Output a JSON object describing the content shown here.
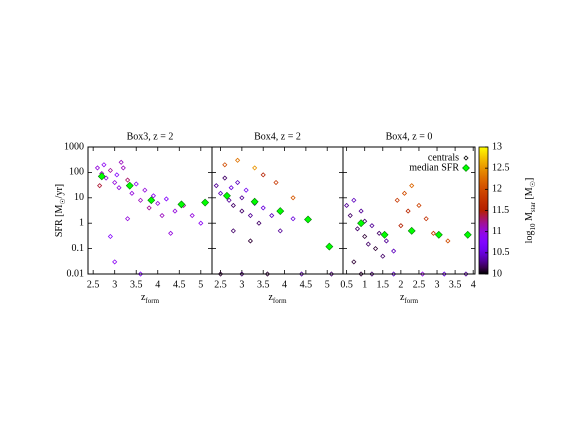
{
  "chart_data": [
    {
      "type": "scatter",
      "title": "Box3, z = 2",
      "ylabel": "SFR [M",
      "ylabel_sub": "☉",
      "ylabel_end": "/yr]",
      "xlabel": "z",
      "xlabel_sub": "form",
      "log_y": true,
      "xlim": [
        2.38,
        5.26
      ],
      "xticks": [
        2.5,
        3,
        3.5,
        4,
        4.5,
        5
      ],
      "ylim": [
        0.01,
        1000
      ],
      "yticks": [
        0.01,
        0.1,
        1,
        10,
        100,
        1000
      ],
      "series": [
        {
          "x": [
            2.6,
            2.7,
            2.75,
            2.8,
            2.9,
            3.0,
            3.05,
            3.1,
            3.2,
            3.3,
            3.4,
            3.5,
            3.6,
            3.7,
            3.8,
            3.9,
            4.0,
            4.1,
            4.2,
            4.4,
            4.6,
            4.8,
            5.0,
            2.9,
            3.3,
            3.0,
            3.6,
            4.3,
            2.65,
            3.15
          ],
          "values": [
            150,
            90,
            200,
            60,
            120,
            40,
            80,
            25,
            150,
            50,
            15,
            35,
            8,
            20,
            4,
            12,
            6,
            2,
            9,
            3,
            5,
            2,
            1,
            0.3,
            1.5,
            0.03,
            0.01,
            0.4,
            30,
            250
          ],
          "mass": [
            11.0,
            11.1,
            10.9,
            11.0,
            11.2,
            11.0,
            10.8,
            11.0,
            11.1,
            11.3,
            11.0,
            10.9,
            11.1,
            11.0,
            11.2,
            10.9,
            11.0,
            11.1,
            10.8,
            11.0,
            11.2,
            11.0,
            10.9,
            10.8,
            11.0,
            10.9,
            10.8,
            11.0,
            11.4,
            11.1
          ]
        },
        {
          "color": "#00ff00",
          "x": [
            2.7,
            3.35,
            3.85,
            4.55,
            5.1
          ],
          "values": [
            70,
            30,
            8,
            5.5,
            6.5
          ]
        }
      ]
    },
    {
      "type": "scatter",
      "title": "Box4, z = 2",
      "xlabel": "z",
      "xlabel_sub": "form",
      "log_y": true,
      "xlim": [
        2.3,
        5.37
      ],
      "xticks": [
        2.5,
        3,
        3.5,
        4,
        4.5,
        5
      ],
      "ylim": [
        0.01,
        1000
      ],
      "series": [
        {
          "x": [
            2.4,
            2.5,
            2.6,
            2.7,
            2.75,
            2.8,
            2.9,
            3.0,
            3.0,
            3.1,
            3.2,
            3.3,
            3.4,
            3.5,
            3.7,
            3.9,
            4.2,
            2.6,
            2.9,
            3.3,
            3.8,
            4.2,
            3.5,
            2.5,
            3.0,
            3.6,
            4.4,
            5.1,
            2.8,
            3.2
          ],
          "values": [
            30,
            15,
            60,
            8,
            25,
            5,
            40,
            10,
            3,
            20,
            2,
            6,
            1,
            4,
            2,
            0.5,
            1.5,
            200,
            300,
            150,
            40,
            10,
            80,
            0.01,
            0.01,
            0.01,
            0.01,
            0.01,
            0.5,
            0.2
          ],
          "mass": [
            10.3,
            10.4,
            10.2,
            10.3,
            10.5,
            10.2,
            10.4,
            10.3,
            10.2,
            10.6,
            10.3,
            10.4,
            10.2,
            10.5,
            10.4,
            10.3,
            10.5,
            12.0,
            12.3,
            12.5,
            11.8,
            12.1,
            11.5,
            10.1,
            10.2,
            10.1,
            10.3,
            10.2,
            10.2,
            10.1
          ]
        },
        {
          "color": "#00ff00",
          "x": [
            2.65,
            3.3,
            3.9,
            4.55,
            5.05
          ],
          "values": [
            12,
            7,
            3,
            1.4,
            0.12
          ]
        }
      ]
    },
    {
      "type": "scatter",
      "title": "Box4, z = 0",
      "xlabel": "z",
      "xlabel_sub": "form",
      "log_y": true,
      "xlim": [
        0.4,
        4.05
      ],
      "xticks": [
        0.5,
        1,
        1.5,
        2,
        2.5,
        3,
        3.5,
        4
      ],
      "ylim": [
        0.01,
        1000
      ],
      "clim": [
        10,
        13
      ],
      "cticks": [
        10,
        10.5,
        11,
        11.5,
        12,
        12.5,
        13
      ],
      "clabel": "log",
      "clabel_sub": "10",
      "clabel_mid": " M",
      "clabel_sub2": "star",
      "clabel_end": " [M",
      "clabel_sub3": "☉",
      "clabel_close": "]",
      "series": [
        {
          "name": "centrals",
          "x": [
            0.5,
            0.6,
            0.7,
            0.8,
            0.9,
            1.0,
            1.0,
            1.1,
            1.2,
            1.3,
            1.4,
            1.5,
            1.6,
            1.8,
            0.7,
            1.9,
            2.1,
            2.2,
            2.3,
            2.5,
            2.7,
            2.0,
            2.9,
            3.3,
            1.2,
            1.8,
            2.6,
            3.2,
            3.8,
            0.9
          ],
          "values": [
            5,
            2,
            8,
            0.6,
            3,
            0.3,
            1.2,
            0.15,
            0.8,
            0.1,
            0.4,
            0.05,
            0.2,
            0.08,
            0.03,
            8,
            15,
            3,
            30,
            5,
            1.5,
            0.8,
            0.4,
            0.2,
            0.01,
            0.01,
            0.01,
            0.01,
            0.01,
            0.01
          ],
          "mass": [
            10.3,
            10.2,
            10.4,
            10.2,
            10.3,
            10.1,
            10.2,
            10.2,
            10.3,
            10.1,
            10.2,
            10.2,
            10.3,
            10.4,
            10.1,
            11.8,
            12.0,
            11.6,
            12.2,
            11.9,
            11.7,
            11.5,
            11.8,
            12.0,
            10.2,
            10.4,
            11.0,
            10.5,
            10.3,
            10.1
          ]
        },
        {
          "name": "median SFR",
          "color": "#00ff00",
          "x": [
            0.9,
            1.55,
            2.3,
            3.05,
            3.85
          ],
          "values": [
            1.0,
            0.35,
            0.5,
            0.35,
            0.35
          ]
        }
      ]
    }
  ]
}
